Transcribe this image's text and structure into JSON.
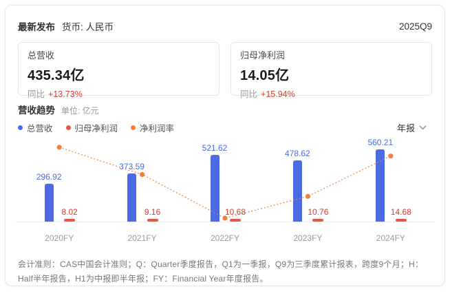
{
  "header": {
    "latest_label": "最新发布",
    "currency_label": "货币: 人民币",
    "period": "2025Q9"
  },
  "stat_cards": [
    {
      "label": "总营收",
      "value": "435.34亿",
      "yoy_label": "同比",
      "yoy_value": "+13.73%"
    },
    {
      "label": "归母净利润",
      "value": "14.05亿",
      "yoy_label": "同比",
      "yoy_value": "+15.94%"
    }
  ],
  "chart_section": {
    "title": "营收趋势",
    "unit_label": "单位: 亿元",
    "period_select": {
      "value": "年报"
    }
  },
  "icons": {
    "chevron_down": "∨"
  },
  "chart_data": {
    "type": "bar",
    "title": "营收趋势",
    "unit": "亿元",
    "categories": [
      "2020FY",
      "2021FY",
      "2022FY",
      "2023FY",
      "2024FY"
    ],
    "series": [
      {
        "name": "总营收",
        "type": "bar",
        "color": "#4a6be1",
        "values": [
          296.92,
          373.59,
          521.62,
          478.62,
          560.21
        ]
      },
      {
        "name": "归母净利润",
        "type": "bar",
        "color": "#e4574a",
        "values": [
          8.02,
          9.16,
          10.68,
          10.76,
          14.68
        ]
      },
      {
        "name": "净利润率",
        "type": "line",
        "color": "#f08138",
        "values_pct": [
          2.7,
          2.45,
          2.05,
          2.25,
          2.62
        ]
      }
    ],
    "ylim": [
      0,
      600
    ],
    "grid": false,
    "legend_position": "top-left",
    "label_colors": {
      "revenue": "#4a6be1",
      "profit": "#d93b30"
    },
    "axis_label_color": "#999999"
  },
  "footnote": {
    "text": "会计准则：CAS中国会计准则；Q：Quarter季度报告，Q1为一季报，Q9为三季度累计报表，跨度9个月；H：Half半年报告，H1为中报即半年报；FY：Financial Year年度报告。"
  }
}
